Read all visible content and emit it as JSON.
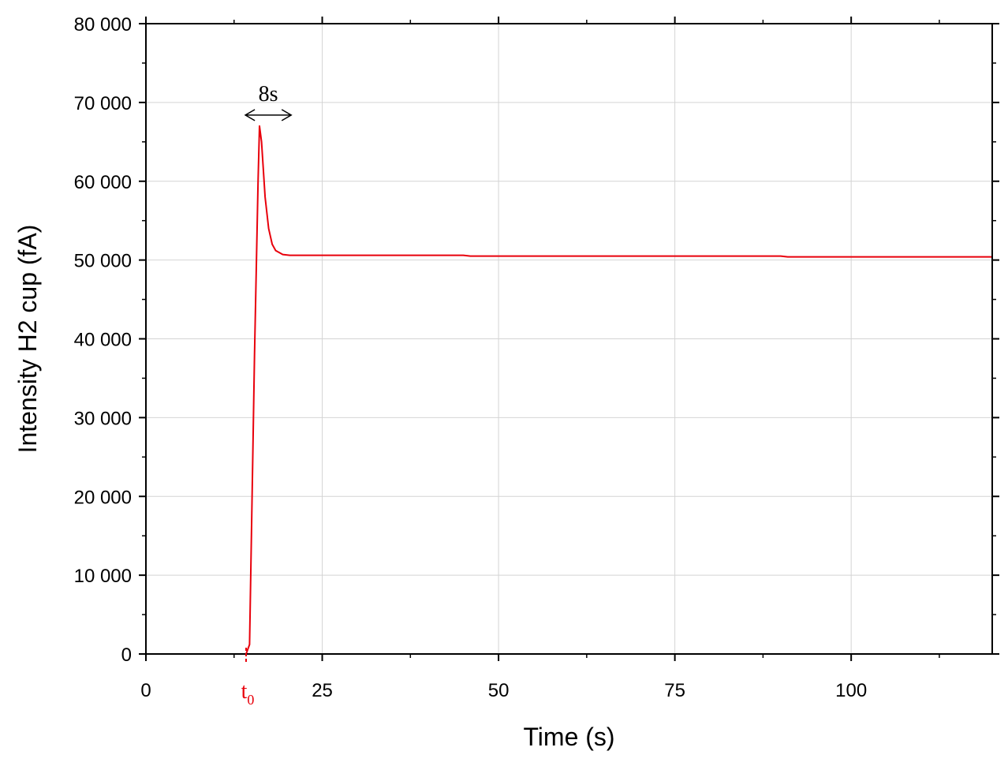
{
  "chart_data": {
    "type": "line",
    "xlabel": "Time (s)",
    "ylabel": "Intensity H2 cup (fA)",
    "xlim": [
      0,
      120
    ],
    "ylim": [
      0,
      80000
    ],
    "x_ticks": [
      0,
      25,
      50,
      75,
      100
    ],
    "x_tick_labels": [
      "0",
      "25",
      "50",
      "75",
      "100"
    ],
    "y_ticks": [
      0,
      10000,
      20000,
      30000,
      40000,
      50000,
      60000,
      70000,
      80000
    ],
    "y_tick_labels": [
      "0",
      "10 000",
      "20 000",
      "30 000",
      "40 000",
      "50 000",
      "60 000",
      "70 000",
      "80 000"
    ],
    "grid": true,
    "line_color": "#e8000b",
    "series": [
      {
        "x": [
          0,
          14.2,
          14.7,
          15.4,
          15.9,
          16.1,
          16.4,
          16.9,
          17.4,
          17.9,
          18.4,
          19.4,
          20.4,
          45,
          46,
          90,
          91,
          120
        ],
        "y": [
          0,
          0,
          1200,
          38000,
          60000,
          67000,
          65000,
          58000,
          54000,
          52000,
          51200,
          50700,
          50600,
          50600,
          50500,
          50500,
          50400,
          50400
        ]
      }
    ],
    "annotations": {
      "t0": {
        "base": "t",
        "sub": "0",
        "x": 14.2,
        "color": "#e8000b"
      },
      "duration": {
        "label": "8s",
        "x_start": 14.1,
        "x_end": 20.6,
        "y": 68400
      }
    }
  }
}
